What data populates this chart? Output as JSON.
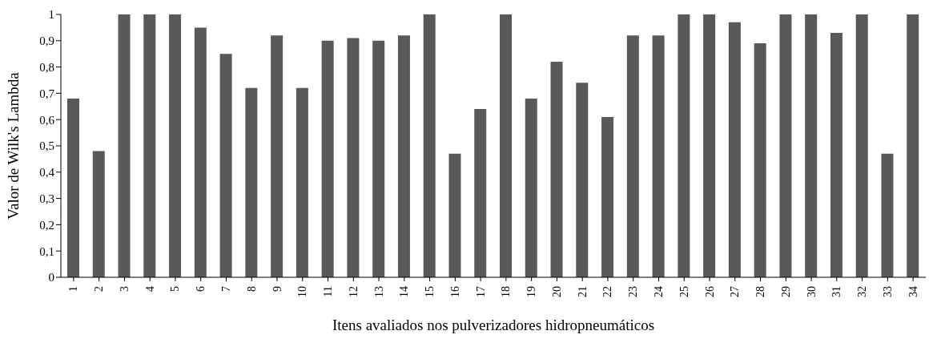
{
  "chart_data": {
    "type": "bar",
    "xlabel": "Itens avaliados nos pulverizadores hidropneumáticos",
    "ylabel": "Valor de Wilk's Lambda",
    "categories": [
      "1",
      "2",
      "3",
      "4",
      "5",
      "6",
      "7",
      "8",
      "9",
      "10",
      "11",
      "12",
      "13",
      "14",
      "15",
      "16",
      "17",
      "18",
      "19",
      "20",
      "21",
      "22",
      "23",
      "24",
      "25",
      "26",
      "27",
      "28",
      "29",
      "30",
      "31",
      "32",
      "33",
      "34"
    ],
    "values": [
      0.68,
      0.48,
      1,
      1,
      1,
      0.95,
      0.85,
      0.72,
      0.92,
      0.72,
      0.9,
      0.91,
      0.9,
      0.92,
      1,
      0.47,
      0.64,
      1,
      0.68,
      0.82,
      0.74,
      0.61,
      0.92,
      0.92,
      1,
      1,
      0.97,
      0.89,
      1,
      1,
      0.93,
      1,
      0.47,
      1
    ],
    "color": "#595959",
    "ylim": [
      0,
      1
    ],
    "yticks": [
      0,
      {
        "value": 0.1,
        "label": "0,1"
      },
      {
        "value": 0.2,
        "label": "0,2"
      },
      {
        "value": 0.3,
        "label": "0,3"
      },
      {
        "value": 0.4,
        "label": "0,4"
      },
      {
        "value": 0.5,
        "label": "0,5"
      },
      {
        "value": 0.6,
        "label": "0,6"
      },
      {
        "value": 0.7,
        "label": "0,7"
      },
      {
        "value": 0.8,
        "label": "0,8"
      },
      {
        "value": 0.9,
        "label": "0,9"
      },
      1
    ],
    "grid": false,
    "legend": false
  }
}
